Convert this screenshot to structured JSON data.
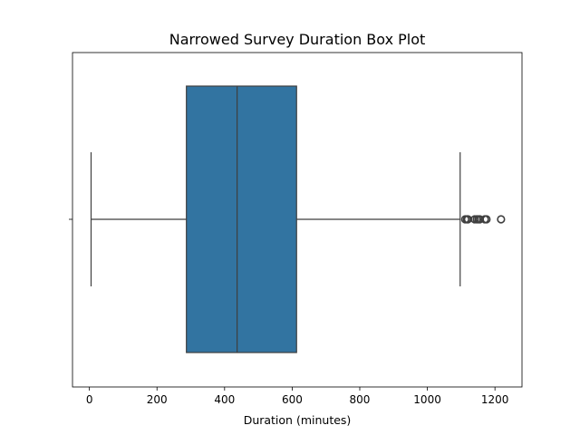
{
  "chart_data": {
    "type": "box",
    "title": "Narrowed Survey Duration Box Plot",
    "xlabel": "Duration (minutes)",
    "ylabel": "",
    "orientation": "horizontal",
    "xlim": [
      -50,
      1280
    ],
    "xticks": [
      0,
      200,
      400,
      600,
      800,
      1000,
      1200
    ],
    "grid": false,
    "box": {
      "whisker_low": 5,
      "q1": 287,
      "median": 437,
      "q3": 613,
      "whisker_high": 1097,
      "outliers": [
        1112,
        1117,
        1120,
        1140,
        1146,
        1151,
        1155,
        1170,
        1175,
        1218
      ],
      "fill_color": "#3274a1",
      "line_color": "#3f3f3f"
    }
  }
}
